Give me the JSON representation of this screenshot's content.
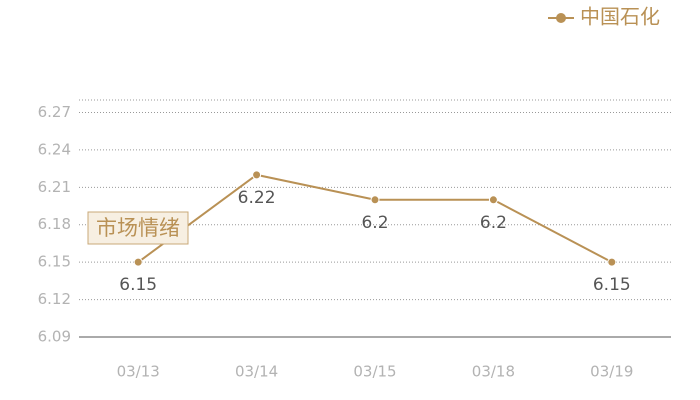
{
  "chart_data": {
    "type": "line",
    "categories": [
      "03/13",
      "03/14",
      "03/15",
      "03/18",
      "03/19"
    ],
    "series": [
      {
        "name": "中国石化",
        "color": "#b99155",
        "values": [
          6.15,
          6.22,
          6.2,
          6.2,
          6.15
        ]
      }
    ],
    "ylim": [
      6.09,
      6.28
    ],
    "yticks": [
      6.09,
      6.12,
      6.15,
      6.18,
      6.21,
      6.24,
      6.27
    ],
    "grid": true,
    "legend": "top-right",
    "annotation": "市场情绪"
  }
}
